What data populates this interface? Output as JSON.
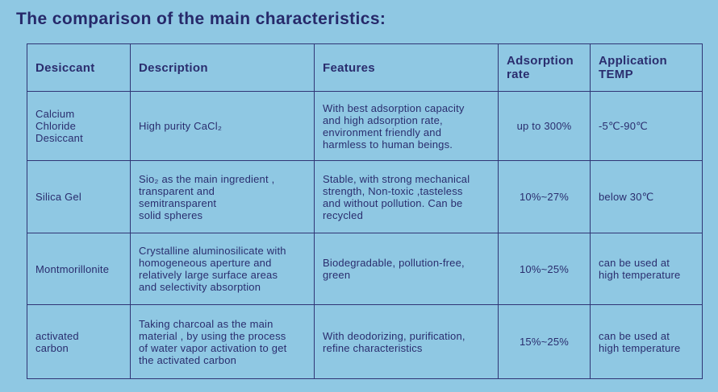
{
  "heading": "The comparison of the main characteristics:",
  "colors": {
    "background": "#8fc8e3",
    "text": "#2a2d6e",
    "border": "#303575"
  },
  "table": {
    "headers": [
      "Desiccant",
      "Description",
      "Features",
      "Adsorption\nrate",
      "Application\nTEMP"
    ],
    "rows": [
      {
        "desiccant": "Calcium\nChloride\nDesiccant",
        "description": "High purity CaCl₂",
        "features": "With best adsorption capacity\nand high adsorption rate,\nenvironment friendly and\nharmless to human beings.",
        "rate": "up to 300%",
        "temp": "-5℃-90℃"
      },
      {
        "desiccant": "Silica Gel",
        "description": "Sio₂ as the main ingredient ,\ntransparent and\nsemitransparent\nsolid spheres",
        "features": "Stable, with strong mechanical\nstrength, Non-toxic ,tasteless\nand without pollution. Can be\nrecycled",
        "rate": "10%~27%",
        "temp": "below 30℃"
      },
      {
        "desiccant": "Montmorillonite",
        "description": "Crystalline aluminosilicate with\nhomogeneous aperture and\nrelatively large surface areas\nand selectivity absorption",
        "features": "Biodegradable, pollution-free,\ngreen",
        "rate": "10%~25%",
        "temp": "can be used at\nhigh temperature"
      },
      {
        "desiccant": "activated\ncarbon",
        "description": "Taking charcoal as the main\nmaterial , by using the process\nof water vapor activation to get\nthe activated carbon",
        "features": "With deodorizing, purification,\nrefine characteristics",
        "rate": "15%~25%",
        "temp": "can be used at\nhigh temperature"
      }
    ]
  }
}
